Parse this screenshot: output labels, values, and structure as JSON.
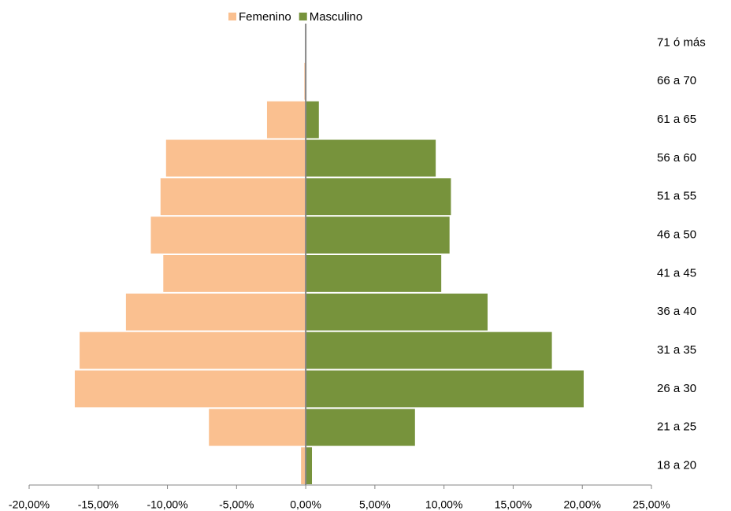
{
  "chart_data": {
    "type": "bar",
    "orientation": "horizontal",
    "stacked": true,
    "categories": [
      "18 a 20",
      "21 a 25",
      "26 a 30",
      "31 a 35",
      "36 a 40",
      "41 a 45",
      "46 a 50",
      "51 a 55",
      "56 a 60",
      "61 a 65",
      "66 a 70",
      "71 ó más"
    ],
    "series": [
      {
        "name": "Femenino",
        "color": "#fac090",
        "values": [
          -0.34,
          -7.0,
          -16.7,
          -16.35,
          -13.0,
          -10.3,
          -11.2,
          -10.5,
          -10.1,
          -2.8,
          -0.1,
          0
        ]
      },
      {
        "name": "Masculino",
        "color": "#77933c",
        "values": [
          0.45,
          7.9,
          20.1,
          17.8,
          13.15,
          9.8,
          10.4,
          10.5,
          9.4,
          0.95,
          0,
          0
        ]
      }
    ],
    "xlim": [
      -20,
      25
    ],
    "xticks": [
      {
        "value": -20,
        "label": "-20,00%"
      },
      {
        "value": -15,
        "label": "-15,00%"
      },
      {
        "value": -10,
        "label": "-10,00%"
      },
      {
        "value": -5,
        "label": "-5,00%"
      },
      {
        "value": 0,
        "label": "0,00%"
      },
      {
        "value": 5,
        "label": "5,00%"
      },
      {
        "value": 10,
        "label": "10,00%"
      },
      {
        "value": 15,
        "label": "15,00%"
      },
      {
        "value": 20,
        "label": "20,00%"
      },
      {
        "value": 25,
        "label": "25,00%"
      }
    ],
    "legend": "top"
  }
}
